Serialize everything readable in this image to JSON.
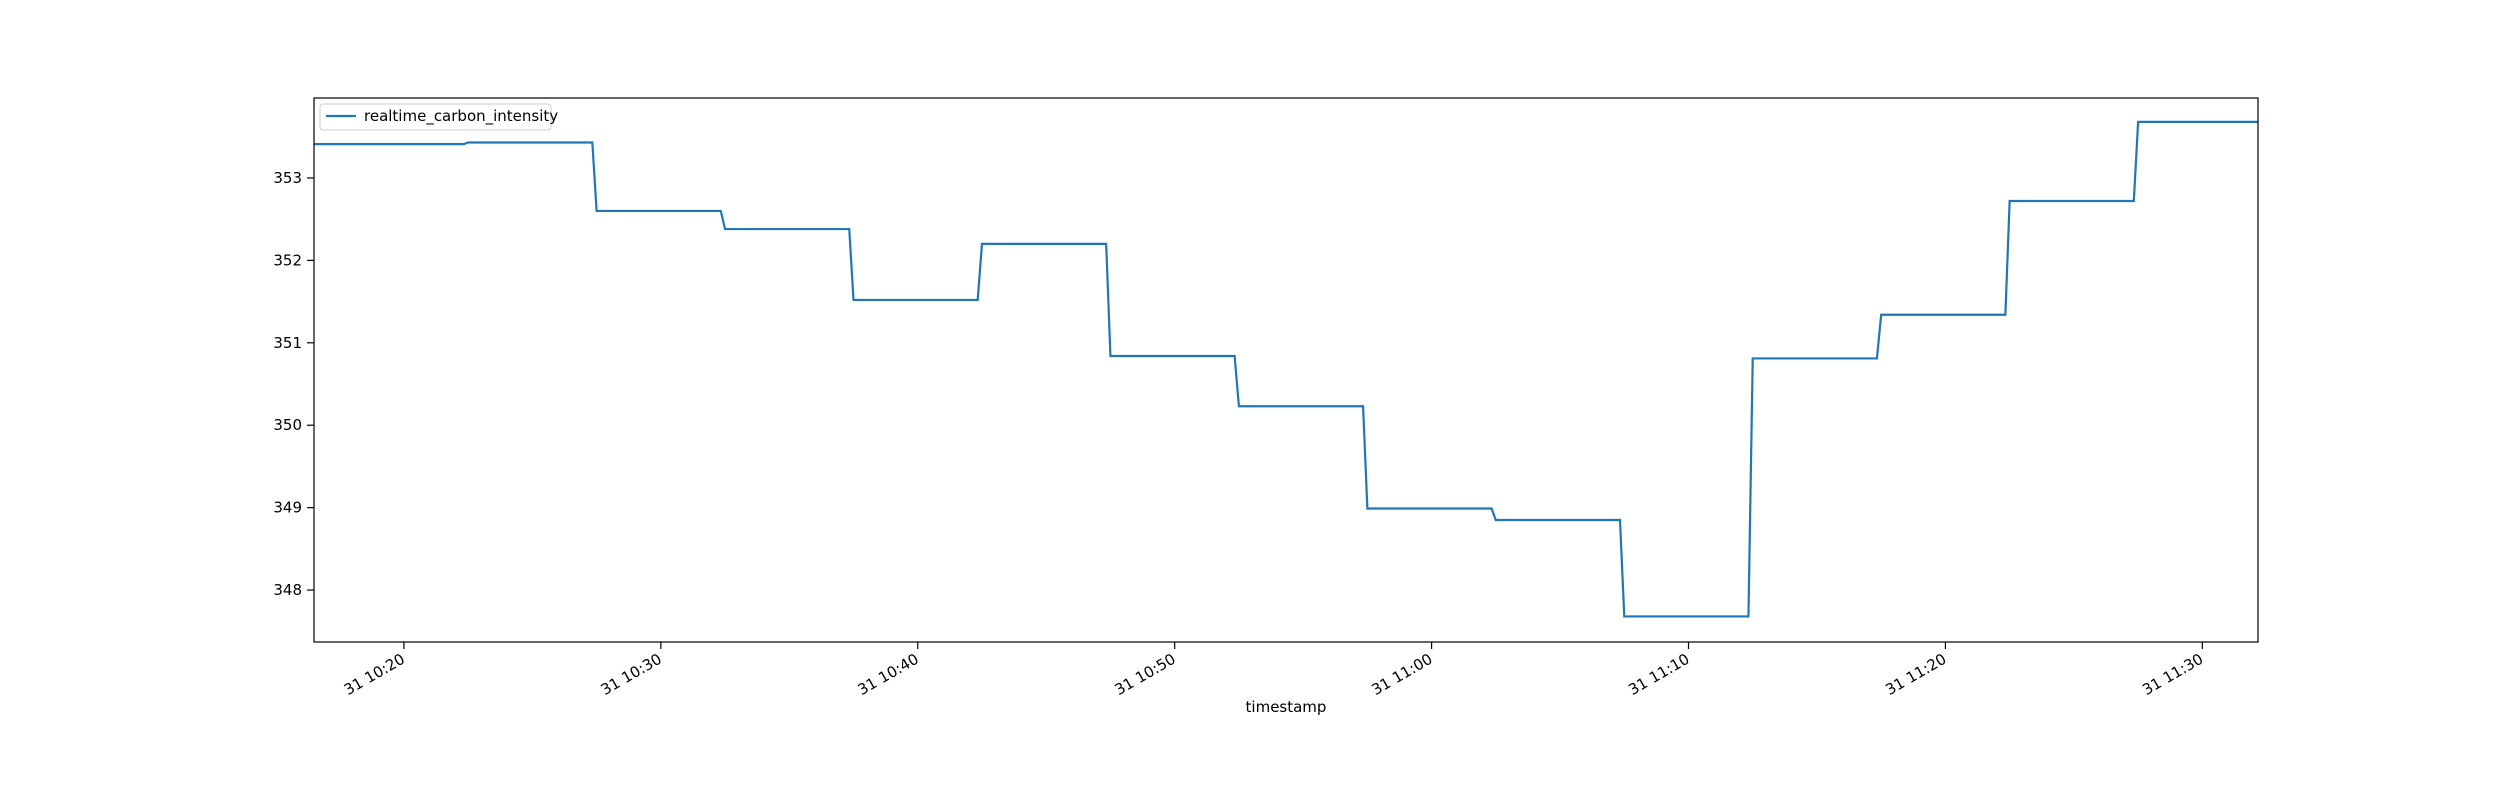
{
  "chart_data": {
    "type": "line",
    "title": "",
    "xlabel": "timestamp",
    "ylabel": "",
    "x_tick_labels": [
      "31 10:20",
      "31 10:30",
      "31 10:40",
      "31 10:50",
      "31 11:00",
      "31 11:10",
      "31 11:20",
      "31 11:30"
    ],
    "x_tick_times": [
      "10:20",
      "10:30",
      "10:40",
      "10:50",
      "11:00",
      "11:10",
      "11:20",
      "11:30"
    ],
    "y_ticks": [
      348,
      349,
      350,
      351,
      352,
      353
    ],
    "xlim": [
      "10:16:30",
      "11:32:10"
    ],
    "ylim": [
      347.37,
      353.97
    ],
    "grid": false,
    "legend_position": "top-left",
    "series": [
      {
        "name": "realtime_carbon_intensity",
        "color": "#1f77b4",
        "points": [
          [
            "10:16:30",
            353.41
          ],
          [
            "10:22:20",
            353.41
          ],
          [
            "10:22:30",
            353.43
          ],
          [
            "10:27:20",
            353.43
          ],
          [
            "10:27:30",
            352.6
          ],
          [
            "10:32:20",
            352.6
          ],
          [
            "10:32:30",
            352.38
          ],
          [
            "10:37:20",
            352.38
          ],
          [
            "10:37:30",
            351.52
          ],
          [
            "10:42:20",
            351.52
          ],
          [
            "10:42:30",
            352.2
          ],
          [
            "10:47:20",
            352.2
          ],
          [
            "10:47:30",
            350.84
          ],
          [
            "10:52:20",
            350.84
          ],
          [
            "10:52:30",
            350.23
          ],
          [
            "10:57:20",
            350.23
          ],
          [
            "10:57:30",
            348.99
          ],
          [
            "11:02:20",
            348.99
          ],
          [
            "11:02:30",
            348.85
          ],
          [
            "11:07:20",
            348.85
          ],
          [
            "11:07:30",
            347.68
          ],
          [
            "11:12:20",
            347.68
          ],
          [
            "11:12:30",
            350.81
          ],
          [
            "11:17:20",
            350.81
          ],
          [
            "11:17:30",
            351.34
          ],
          [
            "11:22:20",
            351.34
          ],
          [
            "11:22:30",
            352.72
          ],
          [
            "11:27:20",
            352.72
          ],
          [
            "11:27:30",
            353.68
          ],
          [
            "11:32:10",
            353.68
          ]
        ]
      }
    ]
  }
}
